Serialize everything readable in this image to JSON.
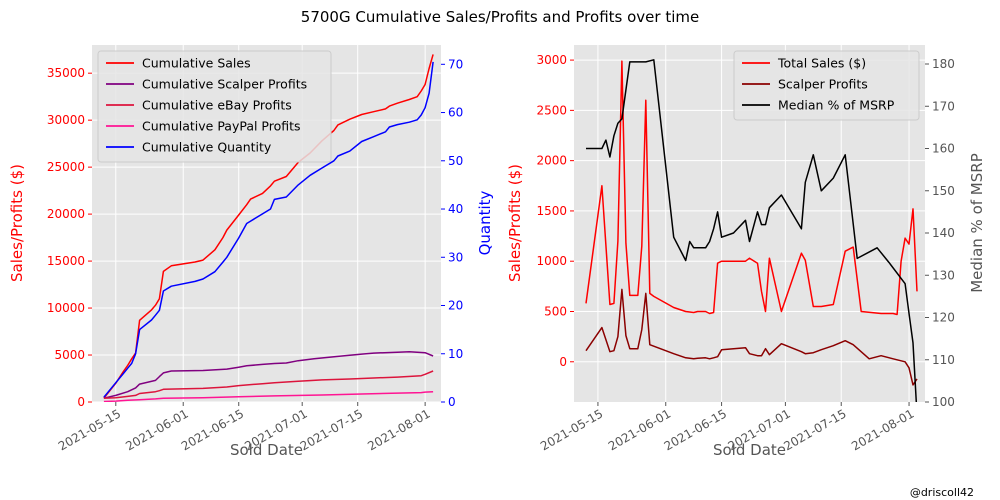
{
  "figure": {
    "title": "5700G Cumulative Sales/Profits and Profits over time",
    "credit": "@driscoll42"
  },
  "colors": {
    "axes_bg": "#e5e5e5",
    "grid": "#ffffff",
    "cum_sales": "#ff0000",
    "cum_scalper": "#800080",
    "cum_ebay": "#dc143c",
    "cum_paypal": "#ff1493",
    "cum_quantity": "#0000ff",
    "total_sales": "#ff0000",
    "scalper_profits": "#8b0000",
    "median_msrp": "#000000",
    "left_axis_text": "#ff0000",
    "right_axis_text_left_chart": "#0000ff",
    "right_axis_text_right_chart": "#555555"
  },
  "chart_data": [
    {
      "type": "line",
      "xlabel": "Sold Date",
      "ylabel": "Sales/Profits ($)",
      "ylabel_right": "Quantity",
      "xlim": [
        "2021-05-09",
        "2021-08-05"
      ],
      "ylim": [
        0,
        38000
      ],
      "ylim_right": [
        0,
        74
      ],
      "xticks": [
        "2021-05-15",
        "2021-06-01",
        "2021-06-15",
        "2021-07-01",
        "2021-07-15",
        "2021-08-01"
      ],
      "yticks": [
        0,
        5000,
        10000,
        15000,
        20000,
        25000,
        30000,
        35000
      ],
      "yticks_right": [
        0,
        10,
        20,
        30,
        40,
        50,
        60,
        70
      ],
      "grid": true,
      "legend": "top-left",
      "series": [
        {
          "name": "Cumulative Sales",
          "axis": "left",
          "color_key": "cum_sales",
          "x": [
            "2021-05-12",
            "2021-05-15",
            "2021-05-17",
            "2021-05-18",
            "2021-05-19",
            "2021-05-20",
            "2021-05-21",
            "2021-05-24",
            "2021-05-25",
            "2021-05-26",
            "2021-05-27",
            "2021-05-29",
            "2021-06-04",
            "2021-06-06",
            "2021-06-09",
            "2021-06-11",
            "2021-06-12",
            "2021-06-15",
            "2021-06-17",
            "2021-06-18",
            "2021-06-21",
            "2021-06-23",
            "2021-06-24",
            "2021-06-27",
            "2021-06-30",
            "2021-07-03",
            "2021-07-06",
            "2021-07-09",
            "2021-07-10",
            "2021-07-13",
            "2021-07-16",
            "2021-07-19",
            "2021-07-22",
            "2021-07-23",
            "2021-07-25",
            "2021-07-28",
            "2021-07-30",
            "2021-07-31",
            "2021-08-01",
            "2021-08-02",
            "2021-08-03"
          ],
          "y": [
            400,
            2000,
            3300,
            3900,
            4600,
            5200,
            8700,
            9800,
            10300,
            11000,
            13900,
            14500,
            14900,
            15100,
            16200,
            17500,
            18300,
            19900,
            21000,
            21600,
            22200,
            23000,
            23500,
            24000,
            25500,
            26500,
            27800,
            28900,
            29500,
            30100,
            30600,
            30900,
            31200,
            31500,
            31800,
            32200,
            32500,
            33100,
            33800,
            35500,
            37000
          ]
        },
        {
          "name": "Cumulative Scalper Profits",
          "axis": "left",
          "color_key": "cum_scalper",
          "x": [
            "2021-05-12",
            "2021-05-15",
            "2021-05-18",
            "2021-05-20",
            "2021-05-21",
            "2021-05-25",
            "2021-05-26",
            "2021-05-27",
            "2021-05-29",
            "2021-06-06",
            "2021-06-12",
            "2021-06-15",
            "2021-06-17",
            "2021-06-21",
            "2021-06-24",
            "2021-06-27",
            "2021-06-30",
            "2021-07-04",
            "2021-07-10",
            "2021-07-16",
            "2021-07-19",
            "2021-07-25",
            "2021-07-28",
            "2021-08-01",
            "2021-08-03"
          ],
          "y": [
            400,
            700,
            1100,
            1500,
            1900,
            2300,
            2700,
            3100,
            3300,
            3350,
            3500,
            3700,
            3850,
            4000,
            4100,
            4150,
            4400,
            4600,
            4850,
            5100,
            5200,
            5300,
            5350,
            5250,
            4900
          ]
        },
        {
          "name": "Cumulative eBay Profits",
          "axis": "left",
          "color_key": "cum_ebay",
          "x": [
            "2021-05-12",
            "2021-05-15",
            "2021-05-18",
            "2021-05-20",
            "2021-05-21",
            "2021-05-25",
            "2021-05-26",
            "2021-05-27",
            "2021-06-06",
            "2021-06-12",
            "2021-06-15",
            "2021-06-21",
            "2021-06-24",
            "2021-06-30",
            "2021-07-06",
            "2021-07-13",
            "2021-07-19",
            "2021-07-25",
            "2021-07-31",
            "2021-08-01",
            "2021-08-03"
          ],
          "y": [
            400,
            450,
            600,
            700,
            900,
            1100,
            1200,
            1350,
            1450,
            1600,
            1750,
            1950,
            2050,
            2200,
            2350,
            2450,
            2550,
            2650,
            2800,
            2950,
            3300
          ]
        },
        {
          "name": "Cumulative PayPal Profits",
          "axis": "left",
          "color_key": "cum_paypal",
          "x": [
            "2021-05-12",
            "2021-05-15",
            "2021-05-18",
            "2021-05-21",
            "2021-05-25",
            "2021-05-27",
            "2021-06-06",
            "2021-06-15",
            "2021-06-24",
            "2021-07-06",
            "2021-07-16",
            "2021-07-25",
            "2021-07-31",
            "2021-08-01",
            "2021-08-03"
          ],
          "y": [
            50,
            100,
            180,
            250,
            330,
            400,
            450,
            550,
            650,
            750,
            850,
            950,
            1000,
            1050,
            1100
          ]
        },
        {
          "name": "Cumulative Quantity",
          "axis": "right",
          "color_key": "cum_quantity",
          "x": [
            "2021-05-12",
            "2021-05-15",
            "2021-05-17",
            "2021-05-18",
            "2021-05-19",
            "2021-05-20",
            "2021-05-21",
            "2021-05-24",
            "2021-05-25",
            "2021-05-26",
            "2021-05-27",
            "2021-05-29",
            "2021-06-04",
            "2021-06-06",
            "2021-06-09",
            "2021-06-11",
            "2021-06-12",
            "2021-06-15",
            "2021-06-17",
            "2021-06-18",
            "2021-06-21",
            "2021-06-23",
            "2021-06-24",
            "2021-06-27",
            "2021-06-30",
            "2021-07-03",
            "2021-07-06",
            "2021-07-09",
            "2021-07-10",
            "2021-07-13",
            "2021-07-16",
            "2021-07-19",
            "2021-07-22",
            "2021-07-23",
            "2021-07-25",
            "2021-07-28",
            "2021-07-30",
            "2021-07-31",
            "2021-08-01",
            "2021-08-02",
            "2021-08-03"
          ],
          "y": [
            1,
            4,
            6,
            7,
            8,
            10,
            15,
            17,
            18,
            19,
            23,
            24,
            25,
            25.5,
            27,
            29,
            30,
            34,
            37,
            37.5,
            39,
            40,
            42,
            42.5,
            45,
            47,
            48.5,
            50,
            51,
            52,
            54,
            55,
            56,
            57,
            57.5,
            58,
            58.5,
            59.5,
            61,
            64,
            70.5
          ]
        }
      ]
    },
    {
      "type": "line",
      "xlabel": "Sold Date",
      "ylabel": "Sales/Profits ($)",
      "ylabel_right": "Median % of MSRP",
      "xlim": [
        "2021-05-09",
        "2021-08-05"
      ],
      "ylim": [
        -400,
        3150
      ],
      "ylim_right": [
        100,
        184.5
      ],
      "xticks": [
        "2021-05-15",
        "2021-06-01",
        "2021-06-15",
        "2021-07-01",
        "2021-07-15",
        "2021-08-01"
      ],
      "yticks": [
        0,
        500,
        1000,
        1500,
        2000,
        2500,
        3000
      ],
      "yticks_right": [
        100,
        110,
        120,
        130,
        140,
        150,
        160,
        170,
        180
      ],
      "grid": true,
      "legend": "top-right",
      "series": [
        {
          "name": "Total Sales ($)",
          "axis": "left",
          "color_key": "total_sales",
          "x": [
            "2021-05-12",
            "2021-05-16",
            "2021-05-18",
            "2021-05-19",
            "2021-05-20",
            "2021-05-21",
            "2021-05-22",
            "2021-05-23",
            "2021-05-25",
            "2021-05-26",
            "2021-05-27",
            "2021-05-28",
            "2021-05-29",
            "2021-06-03",
            "2021-06-06",
            "2021-06-08",
            "2021-06-09",
            "2021-06-11",
            "2021-06-12",
            "2021-06-13",
            "2021-06-14",
            "2021-06-15",
            "2021-06-21",
            "2021-06-22",
            "2021-06-24",
            "2021-06-25",
            "2021-06-26",
            "2021-06-27",
            "2021-06-30",
            "2021-07-05",
            "2021-07-06",
            "2021-07-08",
            "2021-07-10",
            "2021-07-13",
            "2021-07-16",
            "2021-07-18",
            "2021-07-20",
            "2021-07-25",
            "2021-07-28",
            "2021-07-29",
            "2021-07-30",
            "2021-07-31",
            "2021-08-01",
            "2021-08-02",
            "2021-08-03"
          ],
          "y": [
            580,
            1750,
            570,
            580,
            1200,
            2990,
            1180,
            660,
            660,
            1150,
            2600,
            680,
            650,
            540,
            500,
            490,
            500,
            500,
            480,
            490,
            980,
            1000,
            1000,
            1030,
            980,
            700,
            500,
            1030,
            500,
            1080,
            1010,
            550,
            550,
            570,
            1100,
            1140,
            500,
            480,
            480,
            470,
            1000,
            1230,
            1170,
            1520,
            700
          ]
        },
        {
          "name": "Scalper Profits",
          "axis": "left",
          "color_key": "scalper_profits",
          "x": [
            "2021-05-12",
            "2021-05-16",
            "2021-05-18",
            "2021-05-19",
            "2021-05-20",
            "2021-05-21",
            "2021-05-22",
            "2021-05-23",
            "2021-05-25",
            "2021-05-26",
            "2021-05-27",
            "2021-05-28",
            "2021-06-03",
            "2021-06-06",
            "2021-06-08",
            "2021-06-09",
            "2021-06-11",
            "2021-06-12",
            "2021-06-13",
            "2021-06-14",
            "2021-06-15",
            "2021-06-21",
            "2021-06-22",
            "2021-06-24",
            "2021-06-25",
            "2021-06-26",
            "2021-06-27",
            "2021-06-30",
            "2021-07-05",
            "2021-07-06",
            "2021-07-08",
            "2021-07-10",
            "2021-07-13",
            "2021-07-16",
            "2021-07-18",
            "2021-07-22",
            "2021-07-25",
            "2021-07-28",
            "2021-07-30",
            "2021-07-31",
            "2021-08-01",
            "2021-08-02",
            "2021-08-03"
          ],
          "y": [
            110,
            340,
            100,
            110,
            250,
            720,
            260,
            130,
            130,
            320,
            680,
            170,
            80,
            40,
            30,
            35,
            40,
            30,
            40,
            50,
            120,
            140,
            80,
            60,
            60,
            130,
            70,
            180,
            100,
            80,
            90,
            120,
            160,
            210,
            170,
            30,
            60,
            30,
            10,
            0,
            -60,
            -230,
            -170
          ]
        },
        {
          "name": "Median % of MSRP",
          "axis": "right",
          "color_key": "median_msrp",
          "x": [
            "2021-05-12",
            "2021-05-16",
            "2021-05-17",
            "2021-05-18",
            "2021-05-19",
            "2021-05-20",
            "2021-05-21",
            "2021-05-23",
            "2021-05-25",
            "2021-05-26",
            "2021-05-27",
            "2021-05-29",
            "2021-06-03",
            "2021-06-06",
            "2021-06-07",
            "2021-06-08",
            "2021-06-11",
            "2021-06-12",
            "2021-06-13",
            "2021-06-14",
            "2021-06-15",
            "2021-06-18",
            "2021-06-21",
            "2021-06-22",
            "2021-06-24",
            "2021-06-25",
            "2021-06-26",
            "2021-06-27",
            "2021-06-30",
            "2021-07-05",
            "2021-07-06",
            "2021-07-08",
            "2021-07-10",
            "2021-07-13",
            "2021-07-16",
            "2021-07-19",
            "2021-07-24",
            "2021-07-27",
            "2021-07-31",
            "2021-08-01",
            "2021-08-02",
            "2021-08-03"
          ],
          "y": [
            160,
            160,
            162,
            158,
            163,
            166,
            167,
            180.5,
            180.5,
            180.5,
            180.5,
            181,
            139,
            133.5,
            138,
            136.5,
            136.5,
            138,
            141,
            145,
            139,
            140,
            143,
            138,
            145,
            142,
            142,
            146,
            149,
            141,
            152,
            158.5,
            150,
            153,
            158.5,
            134,
            136.5,
            133,
            128,
            121,
            114,
            97
          ]
        }
      ]
    }
  ]
}
